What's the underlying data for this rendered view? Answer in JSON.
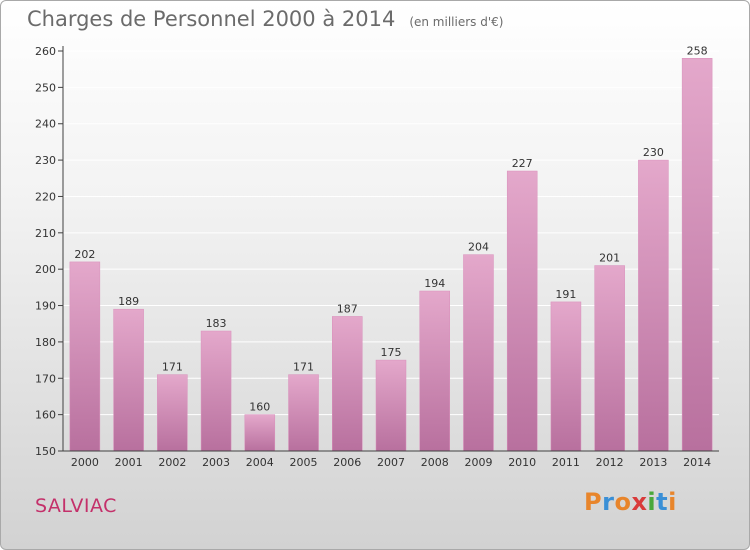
{
  "header": {
    "title": "Charges de Personnel 2000 à 2014",
    "subtitle": "(en milliers d'€)"
  },
  "footer": {
    "commune": "SALVIAC",
    "logo_text": "Proxiti",
    "logo_colors": [
      "#e8852b",
      "#3a8fd6",
      "#e8852b",
      "#d93a3a",
      "#4aa83a",
      "#3a8fd6",
      "#e8852b"
    ]
  },
  "colors": {
    "bar_top": "#e4a8cb",
    "bar_bottom": "#b8709e",
    "axis": "#404040",
    "grid": "#ffffff",
    "label": "#333333"
  },
  "chart_data": {
    "type": "bar",
    "categories": [
      "2000",
      "2001",
      "2002",
      "2003",
      "2004",
      "2005",
      "2006",
      "2007",
      "2008",
      "2009",
      "2010",
      "2011",
      "2012",
      "2013",
      "2014"
    ],
    "values": [
      202,
      189,
      171,
      183,
      160,
      171,
      187,
      175,
      194,
      204,
      227,
      191,
      201,
      230,
      258
    ],
    "title": "Charges de Personnel 2000 à 2014",
    "subtitle": "(en milliers d'€)",
    "ylim": [
      150,
      260
    ],
    "yticks": [
      150,
      160,
      170,
      180,
      190,
      200,
      210,
      220,
      230,
      240,
      250,
      260
    ],
    "grid": true,
    "data_labels": true
  }
}
